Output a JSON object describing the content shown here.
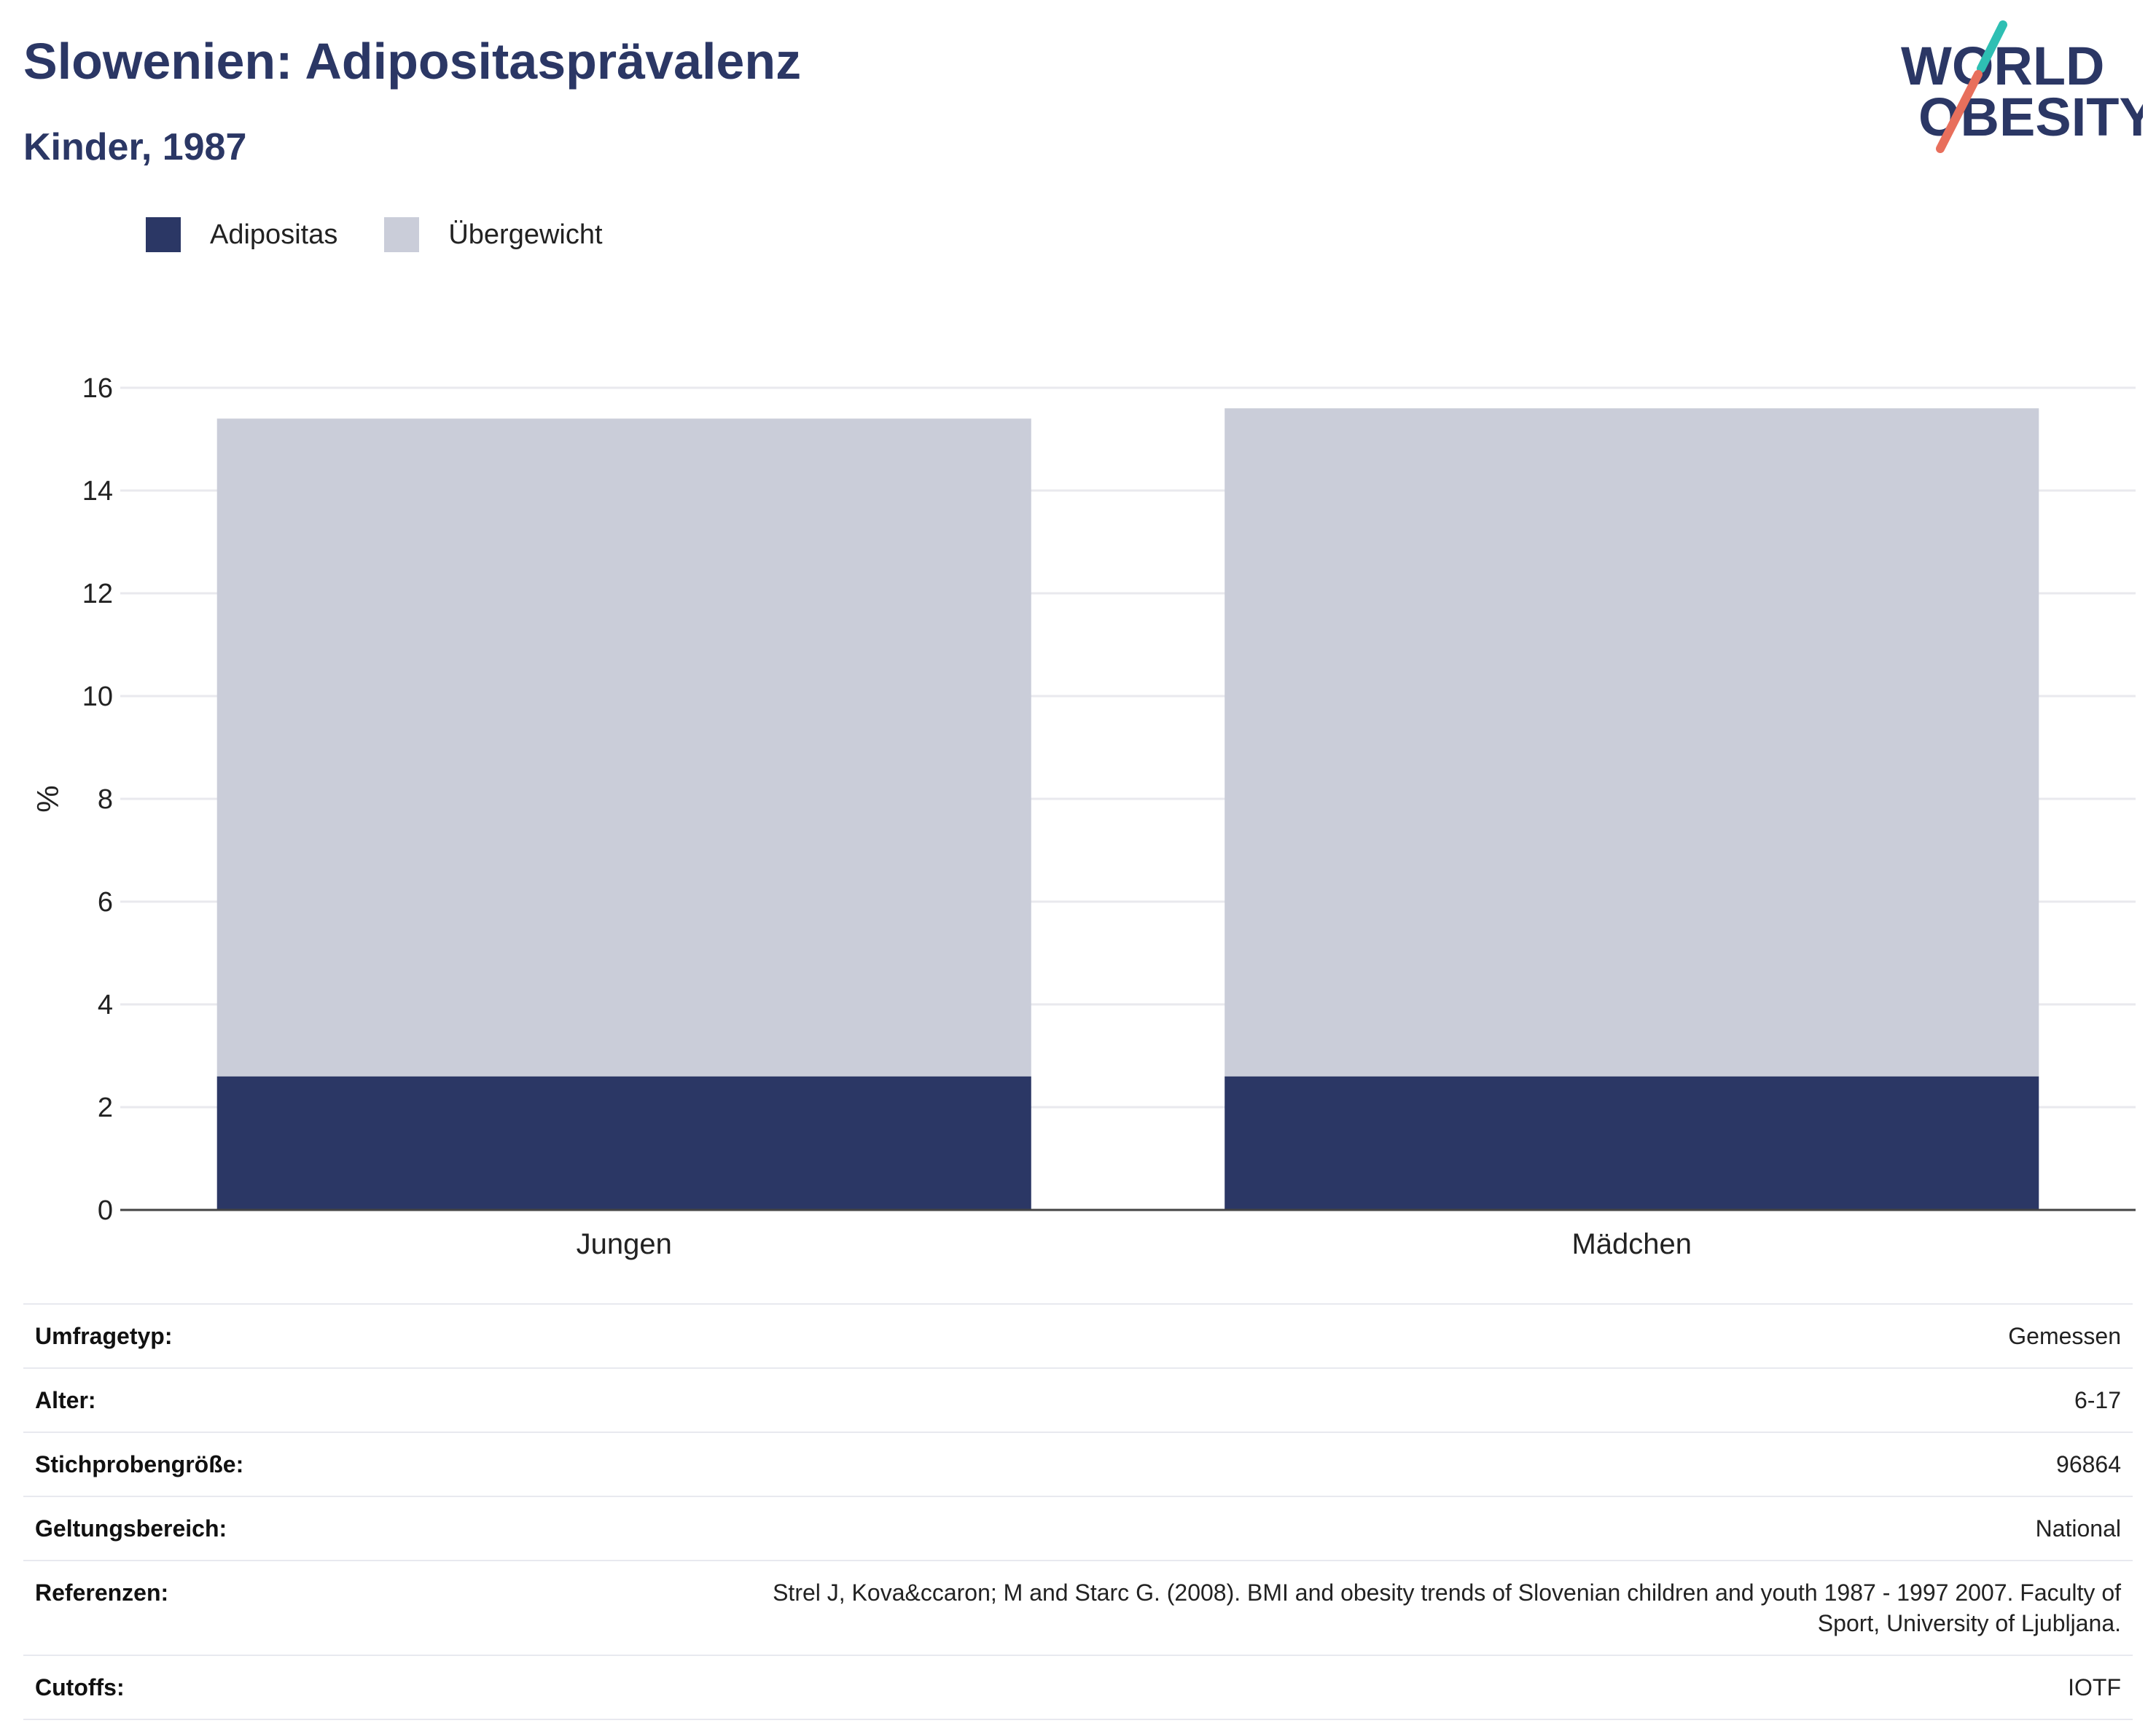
{
  "header": {
    "title": "Slowenien: Adipositasprävalenz",
    "subtitle": "Kinder, 1987"
  },
  "logo": {
    "line1": "WORLD",
    "line2": "OBESITY",
    "colors": {
      "text": "#2b3765",
      "slash_top": "#2ebfb3",
      "slash_bottom": "#e86f5c"
    }
  },
  "colors": {
    "adipositas": "#2b3765",
    "uebergewicht": "#cacdd9",
    "grid": "#e9e9ee",
    "axis": "#444444"
  },
  "chart_data": {
    "type": "bar",
    "stacked": true,
    "categories": [
      "Jungen",
      "Mädchen"
    ],
    "series": [
      {
        "name": "Adipositas",
        "values": [
          2.6,
          2.6
        ]
      },
      {
        "name": "Übergewicht",
        "values": [
          12.8,
          13.0
        ]
      }
    ],
    "ylabel": "%",
    "ylim": [
      0,
      16
    ],
    "yticks": [
      0,
      2,
      4,
      6,
      8,
      10,
      12,
      14,
      16
    ],
    "grid": true,
    "legend_position": "top-left"
  },
  "info": [
    {
      "key": "Umfragetyp:",
      "value": "Gemessen"
    },
    {
      "key": "Alter:",
      "value": "6-17"
    },
    {
      "key": "Stichprobengröße:",
      "value": "96864"
    },
    {
      "key": "Geltungsbereich:",
      "value": "National"
    },
    {
      "key": "Referenzen:",
      "value_lines": [
        "Strel J, Kova&ccaron; M and Starc G. (2008). BMI and obesity trends of Slovenian children and youth 1987 - 1997 2007. Faculty of",
        "Sport, University of Ljubljana."
      ]
    },
    {
      "key": "Cutoffs:",
      "value": "IOTF"
    }
  ]
}
